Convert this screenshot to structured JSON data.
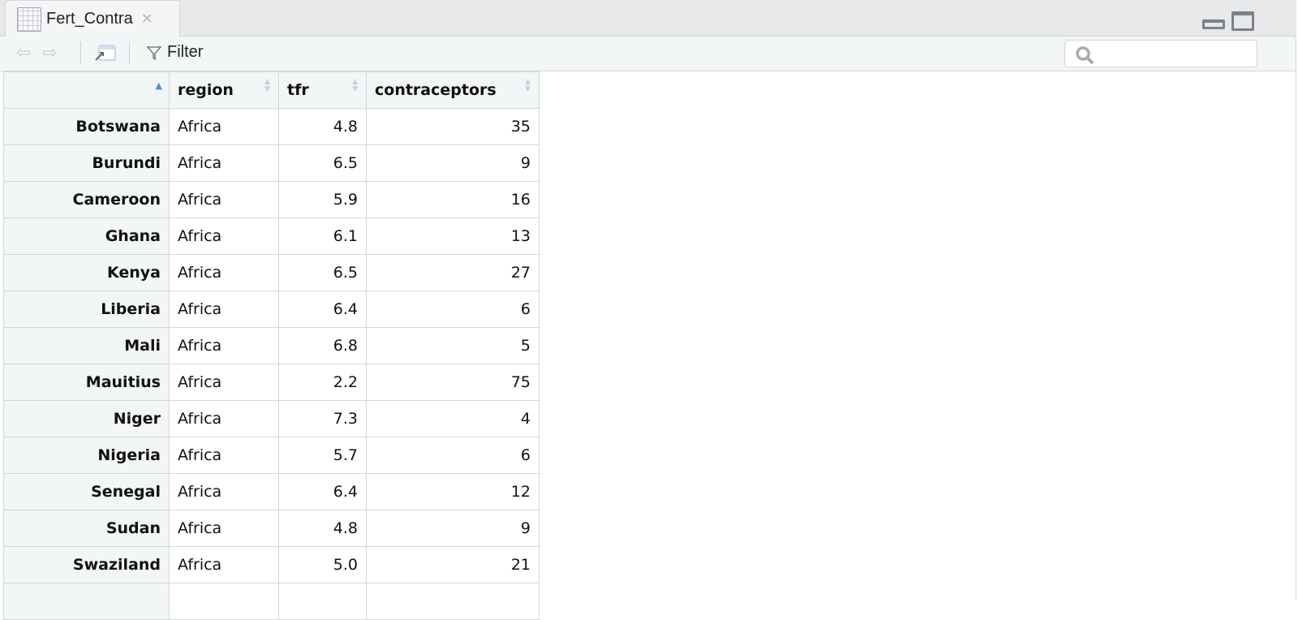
{
  "tab": {
    "title": "Fert_Contra",
    "icon": "table-grid-icon"
  },
  "toolbar": {
    "filter_label": "Filter",
    "search_placeholder": ""
  },
  "table": {
    "columns": [
      "",
      "region",
      "tfr",
      "contraceptors"
    ],
    "sorted_column": 0,
    "sort_direction": "ascending",
    "rows": [
      [
        "Botswana",
        "Africa",
        "4.8",
        "35"
      ],
      [
        "Burundi",
        "Africa",
        "6.5",
        "9"
      ],
      [
        "Cameroon",
        "Africa",
        "5.9",
        "16"
      ],
      [
        "Ghana",
        "Africa",
        "6.1",
        "13"
      ],
      [
        "Kenya",
        "Africa",
        "6.5",
        "27"
      ],
      [
        "Liberia",
        "Africa",
        "6.4",
        "6"
      ],
      [
        "Mali",
        "Africa",
        "6.8",
        "5"
      ],
      [
        "Mauitius",
        "Africa",
        "2.2",
        "75"
      ],
      [
        "Niger",
        "Africa",
        "7.3",
        "4"
      ],
      [
        "Nigeria",
        "Africa",
        "5.7",
        "6"
      ],
      [
        "Senegal",
        "Africa",
        "6.4",
        "12"
      ],
      [
        "Sudan",
        "Africa",
        "4.8",
        "9"
      ],
      [
        "Swaziland",
        "Africa",
        "5.0",
        "21"
      ]
    ]
  }
}
